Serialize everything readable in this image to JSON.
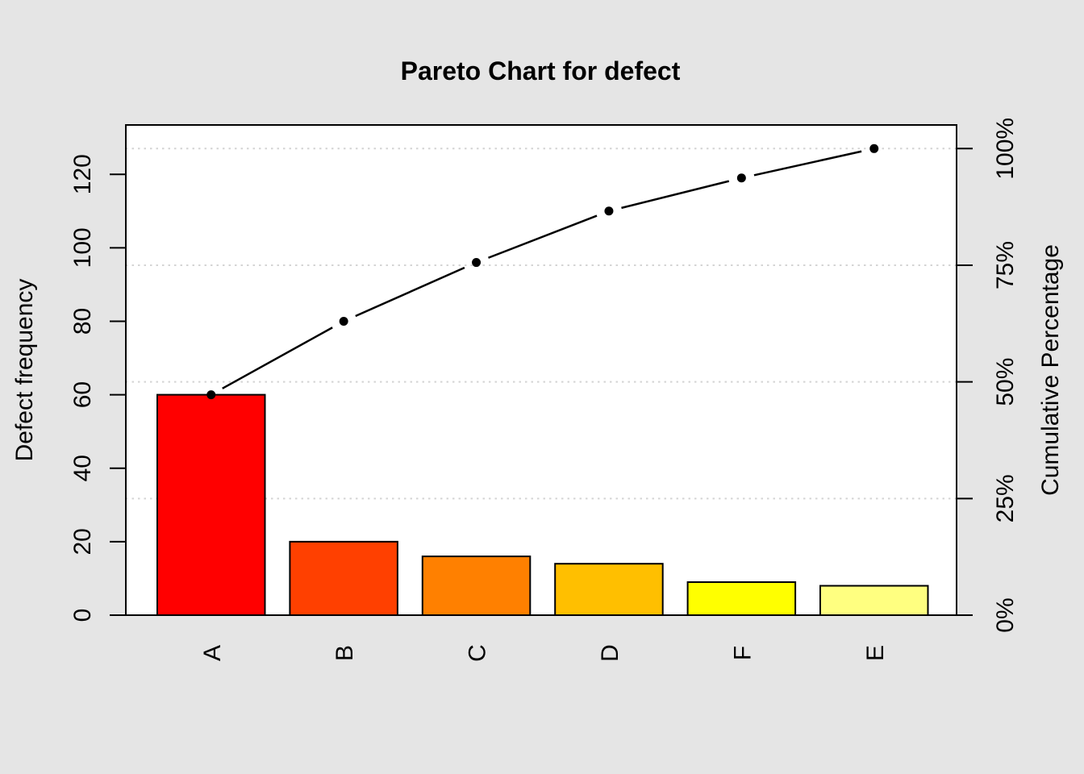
{
  "window": {
    "title": "Pareto Chart for defect"
  },
  "chart_data": {
    "type": "pareto (bar + cumulative line)",
    "title": "Pareto Chart for defect",
    "categories": [
      "A",
      "B",
      "C",
      "D",
      "F",
      "E"
    ],
    "values": [
      60,
      20,
      16,
      14,
      9,
      8
    ],
    "cumulative": [
      60,
      80,
      96,
      110,
      119,
      127
    ],
    "cumulative_pct": [
      47.2,
      63.0,
      75.6,
      86.6,
      93.7,
      100.0
    ],
    "total": 127,
    "ylabel_left": "Defect frequency",
    "ylabel_right": "Cumulative Percentage",
    "left_axis_ticks": [
      0,
      20,
      40,
      60,
      80,
      100,
      120
    ],
    "right_axis_ticks": [
      {
        "label": "0%",
        "pct": 0
      },
      {
        "label": "25%",
        "pct": 25
      },
      {
        "label": "50%",
        "pct": 50
      },
      {
        "label": "75%",
        "pct": 75
      },
      {
        "label": "100%",
        "pct": 100
      }
    ],
    "ylim_left": [
      0,
      133.4
    ],
    "grid": "horizontal dotted lines at 25%, 50%, 75%, 100% of total",
    "legend": "none",
    "bar_colors": [
      "#FF0000",
      "#FF4000",
      "#FF8000",
      "#FFBF00",
      "#FFFF00",
      "#FFFF80"
    ]
  },
  "colors": {
    "background": "#E5E5E5",
    "plot_background": "#FFFFFF",
    "grid": "#D4D4D4",
    "axis": "#000000",
    "cumulative_line": "#000000",
    "point": "#000000"
  }
}
